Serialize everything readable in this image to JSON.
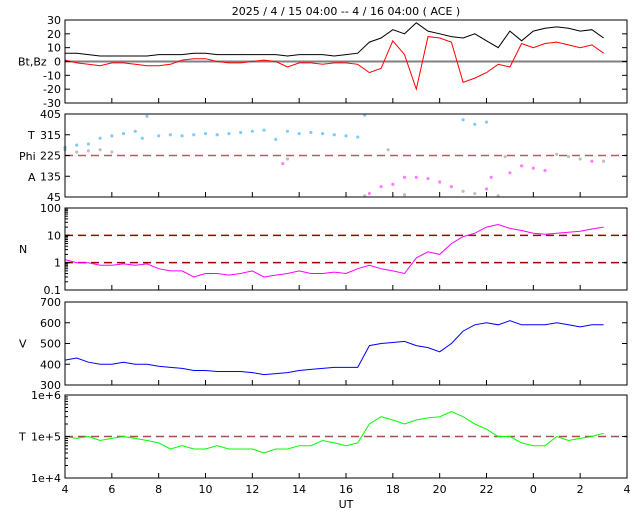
{
  "chart_data": {
    "type": "line",
    "title": "2025 /  4 / 15   04:00 --  4 / 16   04:00 ( ACE )",
    "xlabel": "UT",
    "x_tick_labels": [
      "4",
      "6",
      "8",
      "10",
      "12",
      "14",
      "16",
      "18",
      "20",
      "22",
      "0",
      "2",
      "4"
    ],
    "xlim_hours": [
      4,
      28
    ],
    "t": [
      4,
      4.5,
      5,
      5.5,
      6,
      6.5,
      7,
      7.5,
      8,
      8.5,
      9,
      9.5,
      10,
      10.5,
      11,
      11.5,
      12,
      12.5,
      13,
      13.5,
      14,
      14.5,
      15,
      15.5,
      16,
      16.5,
      17,
      17.5,
      18,
      18.5,
      19,
      19.5,
      20,
      20.5,
      21,
      21.5,
      22,
      22.5,
      23,
      23.5,
      24,
      24.5,
      25,
      25.5,
      26,
      26.5,
      27
    ],
    "panels": [
      {
        "ylabel": "Bt,Bz",
        "scale": "linear",
        "ylim": [
          -30,
          30
        ],
        "tick_labels": [
          "30",
          "20",
          "10",
          "0",
          "-10",
          "-20",
          "-30"
        ],
        "ticks": [
          30,
          20,
          10,
          0,
          -10,
          -20,
          -30
        ],
        "ref_lines": [
          {
            "value": 0,
            "style": "solid",
            "color": "#808080"
          }
        ],
        "series": [
          {
            "name": "Bt",
            "color": "#000000",
            "values": [
              6,
              6,
              5,
              4,
              4,
              4,
              4,
              4,
              5,
              5,
              5,
              6,
              6,
              5,
              5,
              5,
              5,
              5,
              5,
              4,
              5,
              5,
              5,
              4,
              5,
              6,
              14,
              17,
              23,
              20,
              28,
              22,
              20,
              18,
              17,
              20,
              15,
              10,
              22,
              15,
              22,
              24,
              25,
              24,
              22,
              23,
              17
            ]
          },
          {
            "name": "Bz",
            "color": "#ff0000",
            "values": [
              1,
              -1,
              -2,
              -3,
              -1,
              -1,
              -2,
              -3,
              -3,
              -2,
              1,
              2,
              2,
              0,
              -1,
              -1,
              0,
              1,
              0,
              -4,
              -1,
              -1,
              -2,
              -1,
              -1,
              -2,
              -8,
              -5,
              15,
              5,
              -20,
              18,
              17,
              14,
              -15,
              -12,
              -8,
              -2,
              -4,
              13,
              10,
              13,
              14,
              12,
              10,
              12,
              6
            ]
          }
        ]
      },
      {
        "ylabel_lines": [
          "T",
          "Phi",
          "A"
        ],
        "scale": "linear",
        "ylim": [
          45,
          405
        ],
        "tick_labels": [
          "405",
          "315",
          "225",
          "135",
          "45"
        ],
        "ticks": [
          405,
          315,
          225,
          135,
          45
        ],
        "ref_lines": [
          {
            "value": 225,
            "style": "dashed",
            "color": "#b06060"
          }
        ],
        "scatter": [
          {
            "name": "Theta",
            "color": "#80ccff",
            "points": [
              [
                4,
                260
              ],
              [
                4.5,
                270
              ],
              [
                5,
                275
              ],
              [
                5.5,
                300
              ],
              [
                6,
                310
              ],
              [
                6.5,
                320
              ],
              [
                7,
                330
              ],
              [
                7.3,
                300
              ],
              [
                7.5,
                395
              ],
              [
                8,
                310
              ],
              [
                8.5,
                315
              ],
              [
                9,
                310
              ],
              [
                9.5,
                315
              ],
              [
                10,
                320
              ],
              [
                10.5,
                315
              ],
              [
                11,
                320
              ],
              [
                11.5,
                325
              ],
              [
                12,
                330
              ],
              [
                12.5,
                335
              ],
              [
                13,
                295
              ],
              [
                13.5,
                330
              ],
              [
                14,
                320
              ],
              [
                14.5,
                325
              ],
              [
                15,
                320
              ],
              [
                15.5,
                315
              ],
              [
                16,
                310
              ],
              [
                16.5,
                305
              ],
              [
                16.8,
                400
              ],
              [
                21,
                380
              ],
              [
                21.5,
                360
              ],
              [
                22,
                370
              ]
            ]
          },
          {
            "name": "Phi-toward",
            "color": "#ff80ff",
            "points": [
              [
                13.3,
                190
              ],
              [
                17,
                60
              ],
              [
                17.5,
                90
              ],
              [
                18,
                100
              ],
              [
                18.5,
                130
              ],
              [
                19,
                130
              ],
              [
                19.5,
                125
              ],
              [
                20,
                110
              ],
              [
                20.5,
                90
              ],
              [
                22,
                80
              ],
              [
                22.2,
                130
              ],
              [
                23,
                150
              ],
              [
                23.5,
                180
              ],
              [
                24,
                170
              ],
              [
                24.5,
                160
              ],
              [
                26.5,
                200
              ]
            ]
          },
          {
            "name": "Phi-away",
            "color": "#c0c0c0",
            "points": [
              [
                4,
                250
              ],
              [
                4.5,
                240
              ],
              [
                5,
                245
              ],
              [
                5.5,
                250
              ],
              [
                6,
                240
              ],
              [
                13.5,
                210
              ],
              [
                16.8,
                50
              ],
              [
                17.8,
                250
              ],
              [
                18.5,
                55
              ],
              [
                21,
                70
              ],
              [
                21.5,
                60
              ],
              [
                22.5,
                50
              ],
              [
                22.8,
                220
              ],
              [
                25,
                230
              ],
              [
                25.5,
                220
              ],
              [
                26,
                210
              ],
              [
                27,
                200
              ]
            ]
          }
        ]
      },
      {
        "ylabel": "N",
        "scale": "log",
        "ylim": [
          0.1,
          100
        ],
        "tick_labels": [
          "100",
          "10",
          "1",
          "0.1"
        ],
        "ticks": [
          100,
          10,
          1,
          0.1
        ],
        "ref_lines": [
          {
            "value": 10,
            "style": "dashed",
            "color": "#a00000"
          },
          {
            "value": 1,
            "style": "dashed",
            "color": "#a00000"
          }
        ],
        "series": [
          {
            "name": "N",
            "color": "#ff00ff",
            "values": [
              1.3,
              1,
              1,
              0.8,
              0.8,
              0.9,
              0.8,
              0.9,
              0.6,
              0.5,
              0.5,
              0.3,
              0.4,
              0.4,
              0.35,
              0.4,
              0.5,
              0.3,
              0.35,
              0.4,
              0.5,
              0.4,
              0.4,
              0.45,
              0.4,
              0.6,
              0.8,
              0.6,
              0.5,
              0.4,
              1.5,
              2.5,
              2,
              5,
              9,
              12,
              20,
              25,
              18,
              15,
              12,
              11,
              12,
              13,
              14,
              17,
              20
            ]
          }
        ]
      },
      {
        "ylabel": "V",
        "scale": "linear",
        "ylim": [
          300,
          700
        ],
        "tick_labels": [
          "700",
          "600",
          "500",
          "400",
          "300"
        ],
        "ticks": [
          700,
          600,
          500,
          400,
          300
        ],
        "ref_lines": [],
        "series": [
          {
            "name": "V",
            "color": "#0000ff",
            "values": [
              420,
              430,
              410,
              400,
              400,
              410,
              400,
              400,
              390,
              385,
              380,
              370,
              370,
              365,
              365,
              365,
              360,
              350,
              355,
              360,
              370,
              375,
              380,
              385,
              385,
              385,
              490,
              500,
              505,
              510,
              490,
              480,
              460,
              500,
              560,
              590,
              600,
              590,
              610,
              590,
              590,
              590,
              600,
              590,
              580,
              590,
              590
            ]
          }
        ]
      },
      {
        "ylabel": "T",
        "scale": "log",
        "ylim": [
          10000,
          1000000
        ],
        "tick_labels": [
          "1e+6",
          "1e+5",
          "1e+4"
        ],
        "ticks": [
          1000000,
          100000,
          10000
        ],
        "ref_lines": [
          {
            "value": 100000,
            "style": "dashed",
            "color": "#a05050"
          }
        ],
        "series": [
          {
            "name": "T",
            "color": "#00ff00",
            "values": [
              100000,
              90000,
              100000,
              80000,
              90000,
              100000,
              90000,
              80000,
              70000,
              50000,
              60000,
              50000,
              50000,
              60000,
              50000,
              50000,
              50000,
              40000,
              50000,
              50000,
              60000,
              60000,
              80000,
              70000,
              60000,
              70000,
              200000,
              300000,
              250000,
              200000,
              250000,
              280000,
              300000,
              400000,
              300000,
              200000,
              150000,
              100000,
              100000,
              70000,
              60000,
              60000,
              100000,
              80000,
              90000,
              100000,
              120000
            ]
          }
        ]
      }
    ]
  }
}
